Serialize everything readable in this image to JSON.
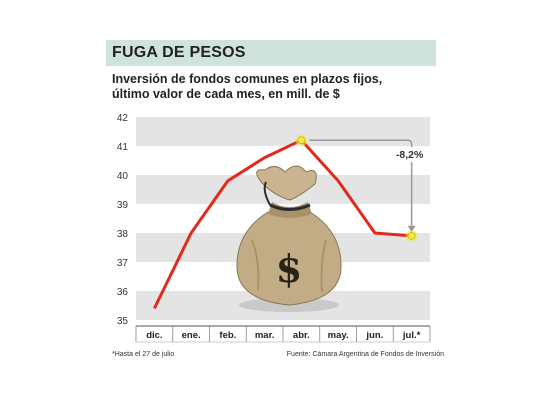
{
  "header": {
    "title": "FUGA DE PESOS",
    "subtitle_line1": "Inversión de fondos comunes en plazos fijos,",
    "subtitle_line2": "último valor de cada mes, en mill. de $"
  },
  "footer": {
    "footnote": "*Hasta el 27 de julio",
    "source": "Fuente: Cámara Argentina de Fondos de Inversión"
  },
  "colors": {
    "line": "#e02a1c",
    "band": "#e4e4e4",
    "title_bg": "#cfe3dc",
    "highlight": "#f2e84a",
    "arrow": "#999999"
  },
  "chart_data": {
    "type": "line",
    "categories": [
      "dic.",
      "ene.",
      "feb.",
      "mar.",
      "abr.",
      "may.",
      "jun.",
      "jul.*"
    ],
    "series": [
      {
        "values": [
          35.4,
          38.0,
          39.8,
          40.6,
          41.2,
          39.8,
          38.0,
          37.9
        ]
      }
    ],
    "y_ticks": [
      35,
      36,
      37,
      38,
      39,
      40,
      41,
      42
    ],
    "ylim": [
      35,
      42
    ],
    "grid": "alternating horizontal bands",
    "highlighted_points": [
      4,
      7
    ],
    "annotation": {
      "text": "-8,2%",
      "from_index": 4,
      "to_index": 7
    },
    "illustration": "money-bag-icon"
  }
}
